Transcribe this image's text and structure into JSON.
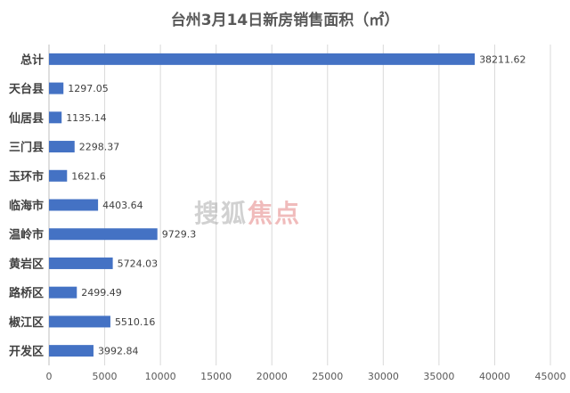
{
  "chart_data": {
    "type": "bar",
    "orientation": "horizontal",
    "title": "台州3月14日新房销售面积（㎡）",
    "categories": [
      "总计",
      "天台县",
      "仙居县",
      "三门县",
      "玉环市",
      "临海市",
      "温岭市",
      "黄岩区",
      "路桥区",
      "椒江区",
      "开发区"
    ],
    "values": [
      38211.62,
      1297.05,
      1135.14,
      2298.37,
      1621.6,
      4403.64,
      9729.3,
      5724.03,
      2499.49,
      5510.16,
      3992.84
    ],
    "value_labels": [
      "38211.62",
      "1297.05",
      "1135.14",
      "2298.37",
      "1621.6",
      "4403.64",
      "9729.3",
      "5724.03",
      "2499.49",
      "5510.16",
      "3992.84"
    ],
    "xlim": [
      0,
      45000
    ],
    "xticks": [
      0,
      5000,
      10000,
      15000,
      20000,
      25000,
      30000,
      35000,
      40000,
      45000
    ],
    "grid": "vertical",
    "legend": "none",
    "bar_color": "#4472c4",
    "xlabel": "",
    "ylabel": ""
  },
  "watermark": {
    "text_main": "搜狐",
    "text_accent": "焦点"
  }
}
